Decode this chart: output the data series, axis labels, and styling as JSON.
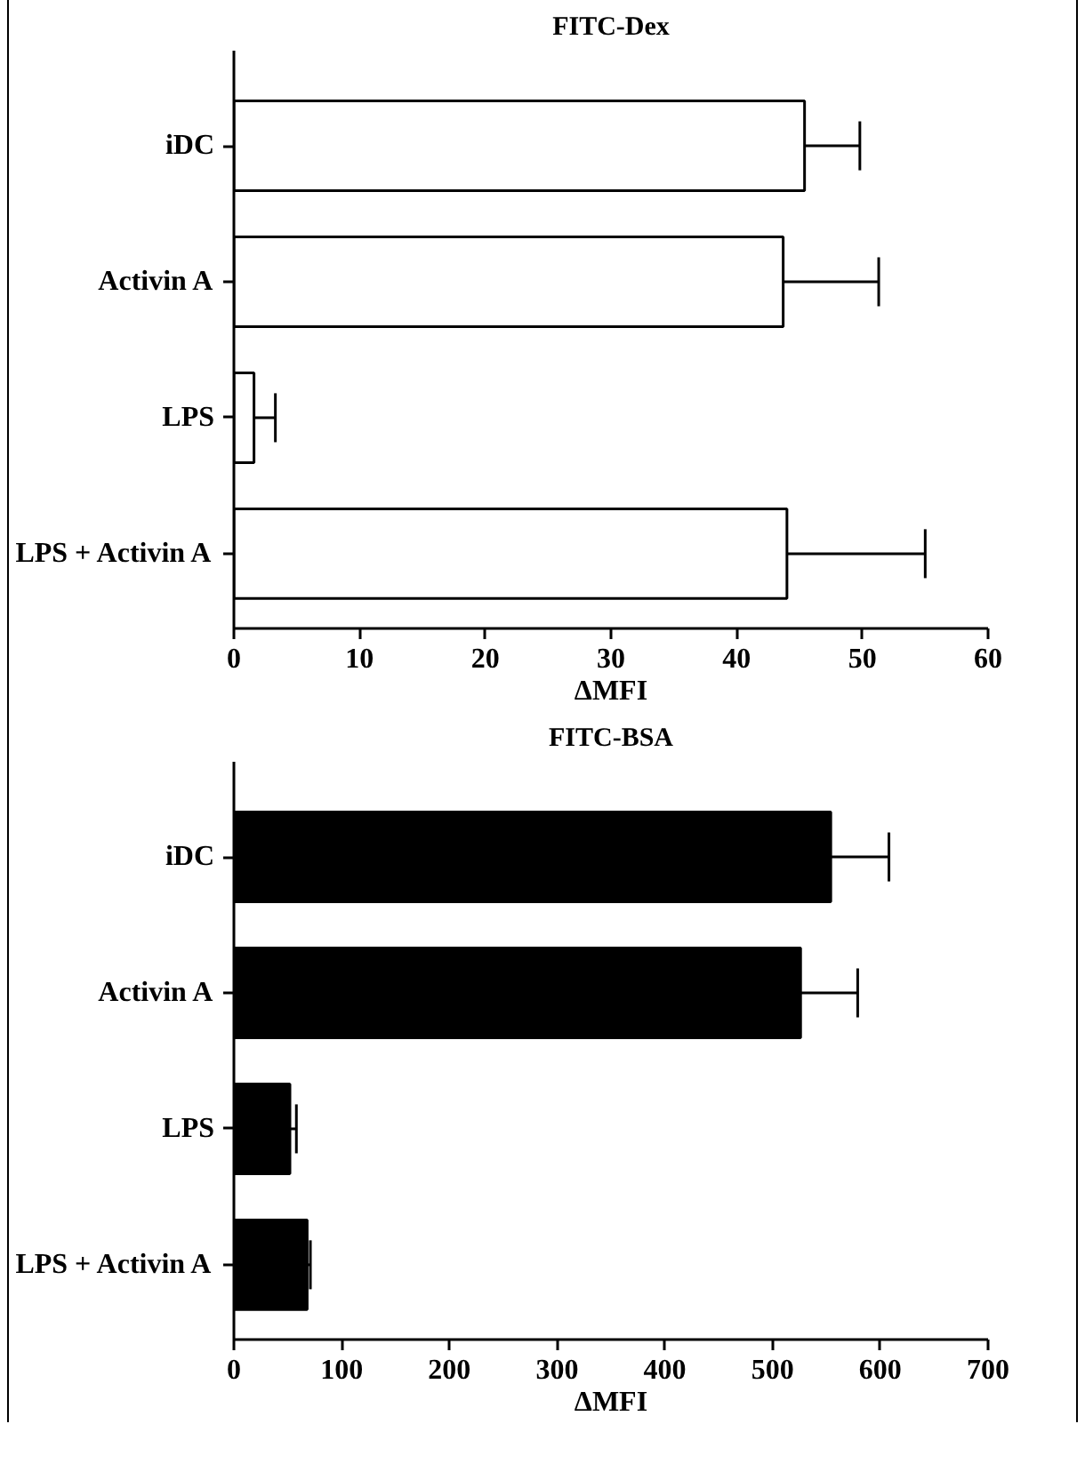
{
  "chart_data": [
    {
      "type": "bar",
      "orientation": "horizontal",
      "title": "FITC-Dex",
      "xlabel": "ΔMFI",
      "categories": [
        "iDC",
        "Activin A",
        "LPS",
        "LPS + Activin A"
      ],
      "values": [
        45.4,
        43.7,
        1.6,
        44.0
      ],
      "errors": [
        4.4,
        7.6,
        1.7,
        11.0
      ],
      "color": "#ffffff",
      "xlim": [
        0,
        60
      ],
      "xticks": [
        0,
        10,
        20,
        30,
        40,
        50,
        60
      ]
    },
    {
      "type": "bar",
      "orientation": "horizontal",
      "title": "FITC-BSA",
      "xlabel": "ΔMFI",
      "categories": [
        "iDC",
        "Activin A",
        "LPS",
        "LPS + Activin A"
      ],
      "values": [
        554,
        526,
        52,
        68
      ],
      "errors": [
        54,
        53,
        6,
        3
      ],
      "color": "#000000",
      "xlim": [
        0,
        700
      ],
      "xticks": [
        0,
        100,
        200,
        300,
        400,
        500,
        600,
        700
      ]
    }
  ]
}
